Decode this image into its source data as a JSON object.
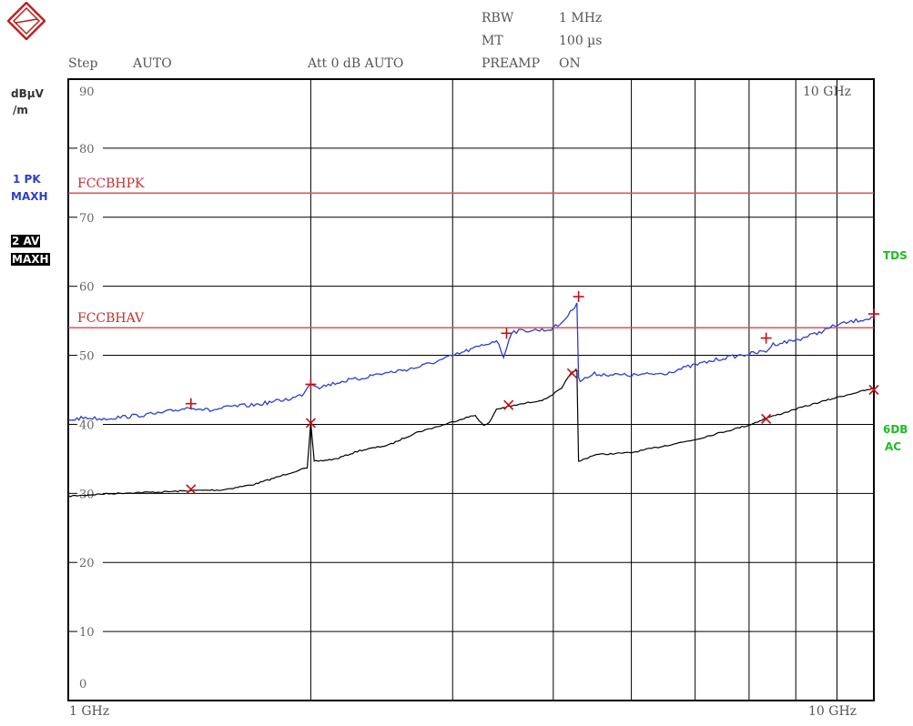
{
  "header": {
    "rbw_label": "RBW",
    "rbw_value": "1 MHz",
    "mt_label": "MT",
    "mt_value": "100 µs",
    "step_label": "Step",
    "step_value": "AUTO",
    "att_text": "Att 0 dB AUTO",
    "preamp_label": "PREAMP",
    "preamp_value": "ON"
  },
  "left_panel": {
    "unit_line1": "dBµV",
    "unit_line2": "/m",
    "trace1_line1": "1 PK",
    "trace1_line2": "MAXH",
    "trace2_line1": "2 AV",
    "trace2_line2": "MAXH"
  },
  "right_panel": {
    "tds": "TDS",
    "db6": "6DB",
    "ac": "AC"
  },
  "axis": {
    "start": "1 GHz",
    "stop": "10 GHz",
    "corner_freq": "10 GHz"
  },
  "colors": {
    "trace1": "#2b3fcc",
    "trace2": "#000000",
    "limit": "#e05050",
    "marker": "#c41010",
    "right_label": "#22bb22",
    "grid": "#000000"
  },
  "chart_data": {
    "type": "line",
    "xlabel": "",
    "ylabel": "dBµV /m",
    "x_scale": "log",
    "x_range_ghz": [
      1,
      10
    ],
    "ylim": [
      0,
      90
    ],
    "yticks": [
      0,
      10,
      20,
      30,
      40,
      50,
      60,
      70,
      80,
      90
    ],
    "grid": true,
    "limit_lines": [
      {
        "name": "FCCBHPK",
        "value": 73.5
      },
      {
        "name": "FCCBHAV",
        "value": 54
      }
    ],
    "series": [
      {
        "name": "1 PK MAXH",
        "points": [
          [
            1,
            40.6
          ],
          [
            1.05,
            41
          ],
          [
            1.1,
            40.8
          ],
          [
            1.2,
            41.2
          ],
          [
            1.3,
            41.6
          ],
          [
            1.42,
            42.5
          ],
          [
            1.5,
            42
          ],
          [
            1.6,
            42.6
          ],
          [
            1.7,
            42.8
          ],
          [
            1.8,
            43.3
          ],
          [
            1.9,
            43.8
          ],
          [
            1.95,
            44.3
          ],
          [
            2.0,
            46
          ],
          [
            2.05,
            45.4
          ],
          [
            2.2,
            46.3
          ],
          [
            2.3,
            46.6
          ],
          [
            2.4,
            47.2
          ],
          [
            2.5,
            47.5
          ],
          [
            2.7,
            48.2
          ],
          [
            2.9,
            49.3
          ],
          [
            3.1,
            50.5
          ],
          [
            3.3,
            51.6
          ],
          [
            3.4,
            52.2
          ],
          [
            3.47,
            49.8
          ],
          [
            3.5,
            51.2
          ],
          [
            3.55,
            53.4
          ],
          [
            3.7,
            53.6
          ],
          [
            3.95,
            53.7
          ],
          [
            4.08,
            54.5
          ],
          [
            4.2,
            56.2
          ],
          [
            4.28,
            57.6
          ],
          [
            4.3,
            47
          ],
          [
            4.32,
            46.3
          ],
          [
            4.5,
            47.3
          ],
          [
            5.0,
            47.1
          ],
          [
            5.5,
            47.4
          ],
          [
            6.0,
            48.6
          ],
          [
            6.5,
            49.6
          ],
          [
            7.0,
            50.2
          ],
          [
            7.35,
            50.6
          ],
          [
            7.5,
            51.6
          ],
          [
            8.0,
            52.2
          ],
          [
            8.5,
            53.2
          ],
          [
            9.0,
            54.4
          ],
          [
            9.5,
            55
          ],
          [
            10,
            55.5
          ]
        ]
      },
      {
        "name": "2 AV MAXH",
        "points": [
          [
            1,
            29.6
          ],
          [
            1.1,
            29.9
          ],
          [
            1.2,
            30.1
          ],
          [
            1.3,
            30.2
          ],
          [
            1.42,
            30.4
          ],
          [
            1.55,
            30.5
          ],
          [
            1.7,
            31.3
          ],
          [
            1.8,
            32.2
          ],
          [
            1.9,
            33.1
          ],
          [
            1.98,
            33.7
          ],
          [
            2.0,
            40.3
          ],
          [
            2.02,
            34.6
          ],
          [
            2.15,
            35
          ],
          [
            2.3,
            36.2
          ],
          [
            2.5,
            37
          ],
          [
            2.7,
            38.8
          ],
          [
            2.9,
            39.8
          ],
          [
            3.1,
            40.9
          ],
          [
            3.2,
            41.3
          ],
          [
            3.28,
            39.8
          ],
          [
            3.33,
            40.2
          ],
          [
            3.4,
            42.2
          ],
          [
            3.6,
            42.8
          ],
          [
            3.9,
            43.6
          ],
          [
            4.1,
            45.2
          ],
          [
            4.2,
            47.4
          ],
          [
            4.28,
            47.8
          ],
          [
            4.3,
            34.6
          ],
          [
            4.5,
            35.6
          ],
          [
            5.0,
            35.9
          ],
          [
            5.5,
            36.9
          ],
          [
            6.0,
            37.8
          ],
          [
            6.5,
            38.9
          ],
          [
            7.0,
            39.9
          ],
          [
            7.35,
            40.9
          ],
          [
            7.6,
            41.4
          ],
          [
            8.0,
            42.2
          ],
          [
            8.5,
            43.1
          ],
          [
            9.0,
            43.9
          ],
          [
            9.5,
            44.6
          ],
          [
            10,
            45.2
          ]
        ]
      }
    ],
    "markers_plus": [
      [
        1.42,
        43
      ],
      [
        2.0,
        45.8
      ],
      [
        3.5,
        53.2
      ],
      [
        4.3,
        58.5
      ],
      [
        7.35,
        52.5
      ],
      [
        10,
        56
      ]
    ],
    "markers_x": [
      [
        1.42,
        30.6
      ],
      [
        2.0,
        40.2
      ],
      [
        3.52,
        42.8
      ],
      [
        4.22,
        47.4
      ],
      [
        7.35,
        40.8
      ],
      [
        10,
        45
      ]
    ]
  }
}
